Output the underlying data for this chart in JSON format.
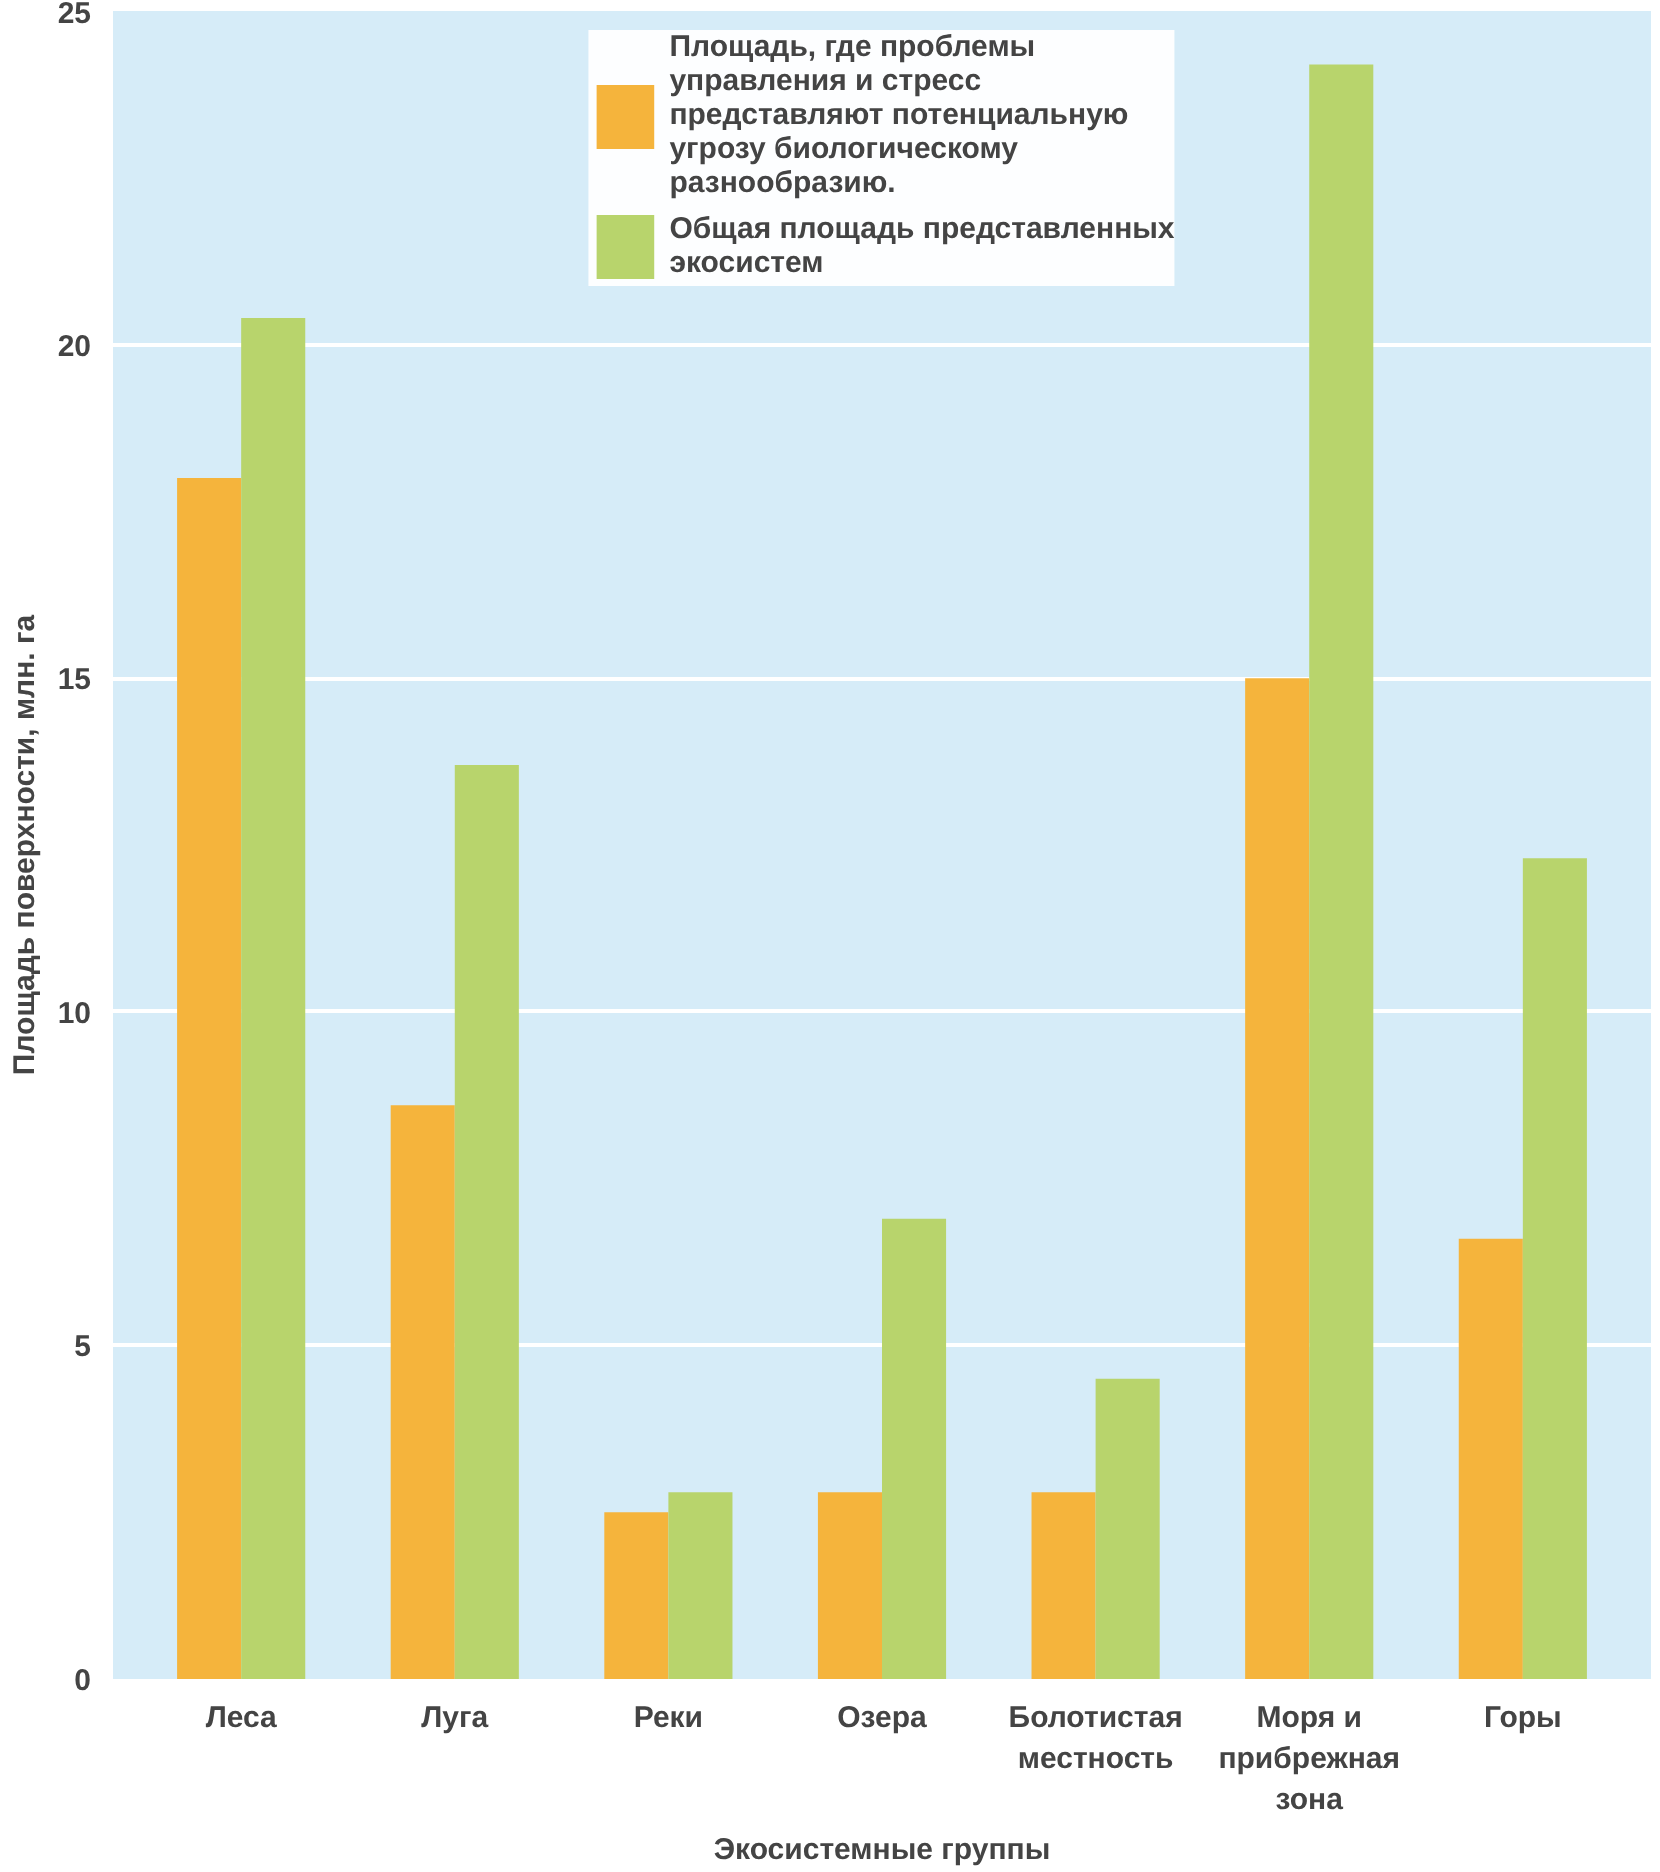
{
  "chart_data": {
    "type": "bar",
    "xlabel": "Экосистемные группы",
    "ylabel": "Площадь поверхности, млн. га",
    "categories": [
      "Леса",
      "Луга",
      "Реки",
      "Озера",
      "Болотистая местность",
      "Моря и прибрежная зона",
      "Горы"
    ],
    "series": [
      {
        "name": "Площадь, где проблемы управления и стресс представляют потенциальную угрозу биологическому разнообразию.",
        "color": "#f5b43c",
        "values": [
          18.0,
          8.6,
          2.5,
          2.8,
          2.8,
          15.0,
          6.6
        ]
      },
      {
        "name": "Общая площадь представленных экосистем",
        "color": "#b8d46c",
        "values": [
          20.4,
          13.7,
          2.8,
          6.9,
          4.5,
          24.2,
          12.3
        ]
      }
    ],
    "ylim": [
      0,
      25
    ],
    "yticks": [
      0,
      5,
      10,
      15,
      20,
      25
    ],
    "grid": "y",
    "legend": "top"
  }
}
